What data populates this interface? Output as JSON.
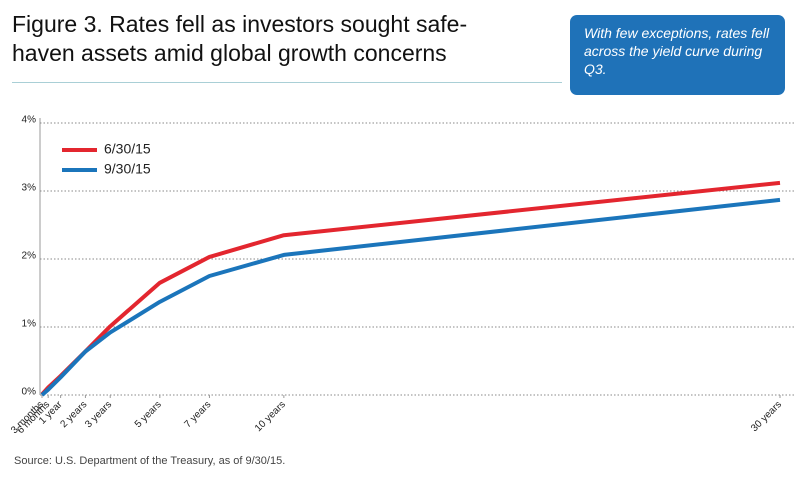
{
  "chart_data": {
    "type": "line",
    "title": [
      "Figure 3. Rates fell as investors sought safe-",
      "haven assets amid global growth concerns"
    ],
    "annotation": "With few exceptions, rates fell across the yield curve during Q3.",
    "source": "Source: U.S. Department of the Treasury, as of 9/30/15.",
    "x": [
      0.25,
      0.5,
      1,
      2,
      3,
      5,
      7,
      10,
      30
    ],
    "series": [
      {
        "name": "6/30/15",
        "color": "#e3262f",
        "values": [
          0.01,
          0.11,
          0.28,
          0.64,
          1.01,
          1.65,
          2.03,
          2.35,
          3.12
        ]
      },
      {
        "name": "9/30/15",
        "color": "#1b75bb",
        "values": [
          0.0,
          0.08,
          0.26,
          0.64,
          0.92,
          1.37,
          1.75,
          2.06,
          2.87
        ]
      }
    ],
    "xlim": [
      0.25,
      30
    ],
    "xticks": [
      {
        "value": 0.25,
        "label": "3 months"
      },
      {
        "value": 0.5,
        "label": "6 months"
      },
      {
        "value": 1,
        "label": "1 year"
      },
      {
        "value": 2,
        "label": "2 years"
      },
      {
        "value": 3,
        "label": "3 years"
      },
      {
        "value": 5,
        "label": "5 years"
      },
      {
        "value": 7,
        "label": "7 years"
      },
      {
        "value": 10,
        "label": "10 years"
      },
      {
        "value": 30,
        "label": "30 years"
      }
    ],
    "ylim": [
      0,
      4
    ],
    "yticks": [
      {
        "value": 0,
        "label": "0%"
      },
      {
        "value": 1,
        "label": "1%"
      },
      {
        "value": 2,
        "label": "2%"
      },
      {
        "value": 3,
        "label": "3%"
      },
      {
        "value": 4,
        "label": "4%"
      }
    ],
    "grid": true
  }
}
